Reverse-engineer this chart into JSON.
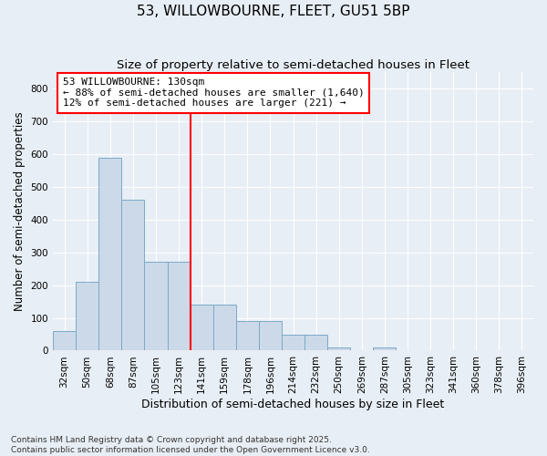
{
  "title": "53, WILLOWBOURNE, FLEET, GU51 5BP",
  "subtitle": "Size of property relative to semi-detached houses in Fleet",
  "xlabel": "Distribution of semi-detached houses by size in Fleet",
  "ylabel": "Number of semi-detached properties",
  "bins": [
    "32sqm",
    "50sqm",
    "68sqm",
    "87sqm",
    "105sqm",
    "123sqm",
    "141sqm",
    "159sqm",
    "178sqm",
    "196sqm",
    "214sqm",
    "232sqm",
    "250sqm",
    "269sqm",
    "287sqm",
    "305sqm",
    "323sqm",
    "341sqm",
    "360sqm",
    "378sqm",
    "396sqm"
  ],
  "values": [
    60,
    210,
    590,
    460,
    270,
    270,
    140,
    140,
    90,
    90,
    50,
    50,
    10,
    0,
    10,
    0,
    0,
    0,
    0,
    0,
    0
  ],
  "bar_color": "#ccd9e8",
  "bar_edge_color": "#7aaac8",
  "vline_x_idx": 6,
  "property_line_label": "53 WILLOWBOURNE: 130sqm",
  "annotation_smaller": "← 88% of semi-detached houses are smaller (1,640)",
  "annotation_larger": "12% of semi-detached houses are larger (221) →",
  "vline_color": "red",
  "box_edgecolor": "red",
  "ylim": [
    0,
    850
  ],
  "yticks": [
    0,
    100,
    200,
    300,
    400,
    500,
    600,
    700,
    800
  ],
  "footer": "Contains HM Land Registry data © Crown copyright and database right 2025.\nContains public sector information licensed under the Open Government Licence v3.0.",
  "background_color": "#e8eef5",
  "grid_color": "#ffffff",
  "title_fontsize": 11,
  "subtitle_fontsize": 9.5,
  "tick_fontsize": 7.5,
  "ylabel_fontsize": 8.5,
  "xlabel_fontsize": 9,
  "annotation_fontsize": 8
}
